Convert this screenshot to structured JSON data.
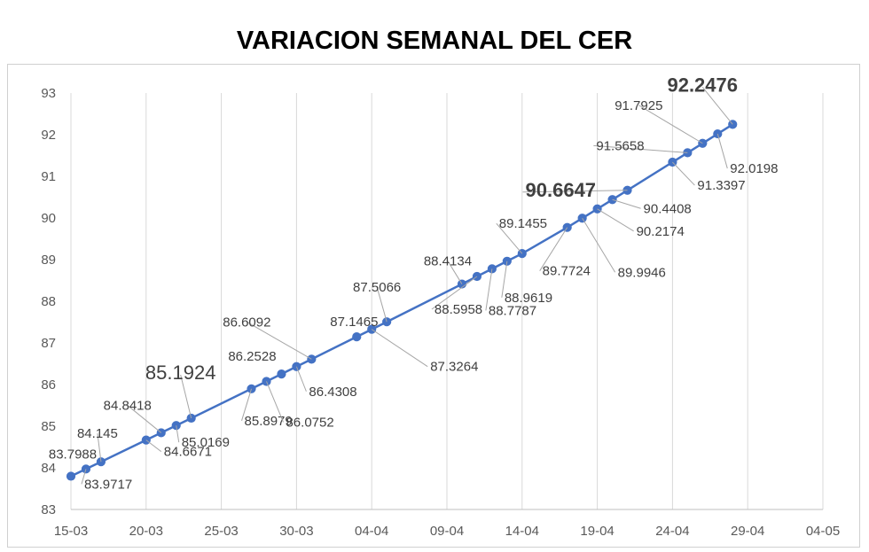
{
  "chart_data": {
    "type": "line",
    "title": "VARIACION SEMANAL DEL CER",
    "xlabel": "",
    "ylabel": "",
    "ylim": [
      83,
      93
    ],
    "y_ticks": [
      "83",
      "84",
      "85",
      "86",
      "87",
      "88",
      "89",
      "90",
      "91",
      "92",
      "93"
    ],
    "x_tick_labels": [
      "15-03",
      "20-03",
      "25-03",
      "30-03",
      "04-04",
      "09-04",
      "14-04",
      "19-04",
      "24-04",
      "29-04",
      "04-05"
    ],
    "x_range": [
      "2021-03-15",
      "2021-05-04"
    ],
    "grid": "vertical",
    "line_color": "#4472C4",
    "series": [
      {
        "points": [
          {
            "x": "2021-03-15",
            "y": 83.7988,
            "label": "83.7988"
          },
          {
            "x": "2021-03-16",
            "y": 83.9717,
            "label": "83.9717"
          },
          {
            "x": "2021-03-17",
            "y": 84.145,
            "label": "84.145"
          },
          {
            "x": "2021-03-20",
            "y": 84.6671,
            "label": "84.6671"
          },
          {
            "x": "2021-03-21",
            "y": 84.8418,
            "label": "84.8418"
          },
          {
            "x": "2021-03-22",
            "y": 85.0169,
            "label": "85.0169"
          },
          {
            "x": "2021-03-23",
            "y": 85.1924,
            "label": "85.1924"
          },
          {
            "x": "2021-03-27",
            "y": 85.8979,
            "label": "85.8979"
          },
          {
            "x": "2021-03-28",
            "y": 86.0752,
            "label": "86.0752"
          },
          {
            "x": "2021-03-29",
            "y": 86.2528,
            "label": "86.2528"
          },
          {
            "x": "2021-03-30",
            "y": 86.4308,
            "label": "86.4308"
          },
          {
            "x": "2021-03-31",
            "y": 86.6092,
            "label": "86.6092"
          },
          {
            "x": "2021-04-03",
            "y": 87.1465,
            "label": "87.1465"
          },
          {
            "x": "2021-04-04",
            "y": 87.3264,
            "label": "87.3264"
          },
          {
            "x": "2021-04-05",
            "y": 87.5066,
            "label": "87.5066"
          },
          {
            "x": "2021-04-10",
            "y": 88.4134,
            "label": "88.4134"
          },
          {
            "x": "2021-04-11",
            "y": 88.5958,
            "label": "88.5958"
          },
          {
            "x": "2021-04-12",
            "y": 88.7787,
            "label": "88.7787"
          },
          {
            "x": "2021-04-13",
            "y": 88.9619,
            "label": "88.9619"
          },
          {
            "x": "2021-04-14",
            "y": 89.1455,
            "label": "89.1455"
          },
          {
            "x": "2021-04-17",
            "y": 89.7724,
            "label": "89.7724"
          },
          {
            "x": "2021-04-18",
            "y": 89.9946,
            "label": "89.9946"
          },
          {
            "x": "2021-04-19",
            "y": 90.2174,
            "label": "90.2174"
          },
          {
            "x": "2021-04-20",
            "y": 90.4408,
            "label": "90.4408"
          },
          {
            "x": "2021-04-21",
            "y": 90.6647,
            "label": "90.6647"
          },
          {
            "x": "2021-04-24",
            "y": 91.3397,
            "label": "91.3397"
          },
          {
            "x": "2021-04-25",
            "y": 91.5658,
            "label": "91.5658"
          },
          {
            "x": "2021-04-26",
            "y": 91.7925,
            "label": "91.7925"
          },
          {
            "x": "2021-04-27",
            "y": 92.0198,
            "label": "92.0198"
          },
          {
            "x": "2021-04-28",
            "y": 92.2476,
            "label": "92.2476"
          }
        ]
      }
    ]
  }
}
